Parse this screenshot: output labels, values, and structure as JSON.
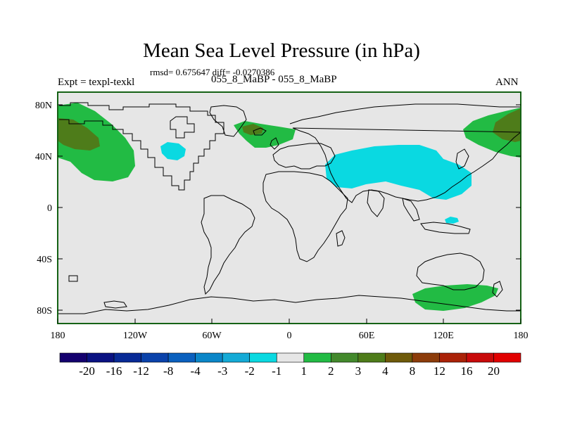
{
  "figure": {
    "title": "Mean Sea Level Pressure (in hPa)",
    "stats": "rmsd= 0.675647 diff= -0.0270386",
    "left_label": "Expt = texpl-texkl",
    "center_label": "055_8_MaBP - 055_8_MaBP",
    "right_label": "ANN"
  },
  "axes": {
    "x_ticks": [
      "180",
      "120W",
      "60W",
      "0",
      "60E",
      "120E",
      "180"
    ],
    "y_ticks": [
      "80N",
      "40N",
      "0",
      "40S",
      "80S"
    ]
  },
  "colorbar": {
    "labels": [
      "-20",
      "-16",
      "-12",
      "-8",
      "-4",
      "-3",
      "-2",
      "-1",
      "1",
      "2",
      "3",
      "4",
      "8",
      "12",
      "16",
      "20"
    ],
    "colors": [
      "#14006e",
      "#0a1282",
      "#082a96",
      "#0a42aa",
      "#0a60be",
      "#0a86c8",
      "#14aad6",
      "#0ad9e1",
      "#e6e6e6",
      "#22bb44",
      "#43892c",
      "#4e7c1a",
      "#6e5a0a",
      "#8c3c0a",
      "#aa2208",
      "#c80a0a",
      "#e10000"
    ]
  },
  "map": {
    "land_color": "#e6e6e6",
    "outline_color": "#000000",
    "frame_color": "#1e8c1e"
  },
  "anomalies": [
    {
      "name": "north-pacific-west-positive",
      "level": "2",
      "color": "#22bb44"
    },
    {
      "name": "north-pacific-west-core",
      "level": "3",
      "color": "#4e7c1a"
    },
    {
      "name": "north-pacific-east-positive",
      "level": "2",
      "color": "#22bb44"
    },
    {
      "name": "north-pacific-east-core",
      "level": "3",
      "color": "#4e7c1a"
    },
    {
      "name": "north-atlantic-positive",
      "level": "2",
      "color": "#22bb44"
    },
    {
      "name": "north-atlantic-core",
      "level": "3",
      "color": "#4e7c1a"
    },
    {
      "name": "asia-negative",
      "level": "-1",
      "color": "#0ad9e1"
    },
    {
      "name": "east-pacific-negative",
      "level": "-1",
      "color": "#0ad9e1"
    },
    {
      "name": "indian-ocean-negative",
      "level": "-1",
      "color": "#0ad9e1"
    },
    {
      "name": "southern-ocean-positive",
      "level": "2",
      "color": "#22bb44"
    }
  ]
}
